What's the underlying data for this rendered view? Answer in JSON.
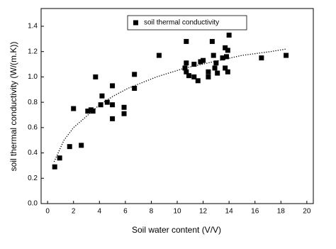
{
  "chart_data": {
    "type": "scatter",
    "xlabel": "Soil water content (V/V)",
    "ylabel": "soil thermal conductivity (W/(m.K))",
    "legend": "top",
    "series": [
      {
        "name": "soil thermal conductivity",
        "color": "#000000",
        "marker": "square",
        "x": [
          0.55,
          0.93,
          1.7,
          2.0,
          2.6,
          3.1,
          3.35,
          3.5,
          3.7,
          4.1,
          4.2,
          4.6,
          5.0,
          5.0,
          5.0,
          5.9,
          5.9,
          6.7,
          6.7,
          8.6,
          10.6,
          10.7,
          10.7,
          10.7,
          10.9,
          11.3,
          11.3,
          11.6,
          11.8,
          12.0,
          12.4,
          12.4,
          12.7,
          12.8,
          12.9,
          13.0,
          13.1,
          13.5,
          13.7,
          13.7,
          13.8,
          13.9,
          13.9,
          14.0,
          16.5,
          18.4
        ],
        "values": [
          0.29,
          0.36,
          0.45,
          0.75,
          0.46,
          0.73,
          0.74,
          0.73,
          1.0,
          0.78,
          0.85,
          0.8,
          0.93,
          0.78,
          0.67,
          0.76,
          0.71,
          1.02,
          0.91,
          1.17,
          1.07,
          1.28,
          1.04,
          1.11,
          1.01,
          1.1,
          1.0,
          0.97,
          1.12,
          1.13,
          1.04,
          1.0,
          1.28,
          1.17,
          1.07,
          1.11,
          1.03,
          1.15,
          1.23,
          1.07,
          1.16,
          1.21,
          1.04,
          1.33,
          1.15,
          1.17
        ]
      }
    ],
    "curve": {
      "color": "#000000",
      "style": "dotted",
      "x": [
        0.5,
        1.26,
        2.0,
        2.9,
        4.0,
        5.1,
        6.2,
        8.4,
        10.6,
        12.8,
        15.0,
        17.2,
        18.4
      ],
      "values": [
        0.33,
        0.5,
        0.6,
        0.68,
        0.78,
        0.85,
        0.91,
        1.0,
        1.07,
        1.12,
        1.17,
        1.2,
        1.22
      ]
    },
    "xlim": [
      -0.5,
      20.5
    ],
    "ylim": [
      0,
      1.54
    ],
    "xticks": [
      0,
      2,
      4,
      6,
      8,
      10,
      12,
      14,
      16,
      18,
      20
    ],
    "yticks": [
      {
        "value": 0,
        "label": "0.0"
      },
      0.2,
      0.4,
      0.6,
      0.8,
      {
        "value": 1,
        "label": "1.0"
      },
      1.2,
      1.4
    ]
  }
}
